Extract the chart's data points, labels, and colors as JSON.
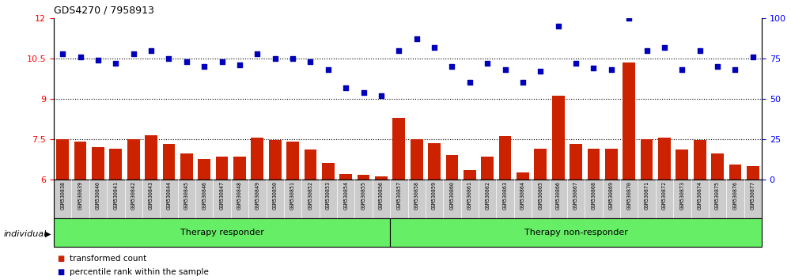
{
  "title": "GDS4270 / 7958913",
  "samples": [
    "GSM530838",
    "GSM530839",
    "GSM530840",
    "GSM530841",
    "GSM530842",
    "GSM530843",
    "GSM530844",
    "GSM530845",
    "GSM530846",
    "GSM530847",
    "GSM530848",
    "GSM530849",
    "GSM530850",
    "GSM530851",
    "GSM530852",
    "GSM530853",
    "GSM530854",
    "GSM530855",
    "GSM530856",
    "GSM530857",
    "GSM530858",
    "GSM530859",
    "GSM530860",
    "GSM530861",
    "GSM530862",
    "GSM530863",
    "GSM530864",
    "GSM530865",
    "GSM530866",
    "GSM530867",
    "GSM530868",
    "GSM530869",
    "GSM530870",
    "GSM530871",
    "GSM530872",
    "GSM530873",
    "GSM530874",
    "GSM530875",
    "GSM530876",
    "GSM530877"
  ],
  "bar_values": [
    7.5,
    7.4,
    7.2,
    7.15,
    7.5,
    7.65,
    7.3,
    6.95,
    6.75,
    6.85,
    6.85,
    7.55,
    7.45,
    7.4,
    7.1,
    6.6,
    6.2,
    6.15,
    6.1,
    8.3,
    7.5,
    7.35,
    6.9,
    6.35,
    6.85,
    7.6,
    6.25,
    7.15,
    9.1,
    7.3,
    7.15,
    7.15,
    10.35,
    7.5,
    7.55,
    7.1,
    7.45,
    6.95,
    6.55,
    6.5
  ],
  "dot_values": [
    78,
    76,
    74,
    72,
    78,
    80,
    75,
    73,
    70,
    73,
    71,
    78,
    75,
    75,
    73,
    68,
    57,
    54,
    52,
    80,
    87,
    82,
    70,
    60,
    72,
    68,
    60,
    67,
    95,
    72,
    69,
    68,
    100,
    80,
    82,
    68,
    80,
    70,
    68,
    76
  ],
  "left_yticks": [
    6,
    7.5,
    9,
    10.5,
    12
  ],
  "right_yticks": [
    0,
    25,
    50,
    75,
    100
  ],
  "left_ylim": [
    6,
    12
  ],
  "right_ylim": [
    0,
    100
  ],
  "bar_color": "#cc2200",
  "dot_color": "#0000bb",
  "group1_label": "Therapy responder",
  "group2_label": "Therapy non-responder",
  "group1_count": 19,
  "group_bg_color": "#66ee66",
  "tick_bg_color": "#cccccc",
  "individual_label": "individual",
  "hline_values": [
    7.5,
    9.0,
    10.5
  ],
  "legend_bar_label": "transformed count",
  "legend_dot_label": "percentile rank within the sample"
}
